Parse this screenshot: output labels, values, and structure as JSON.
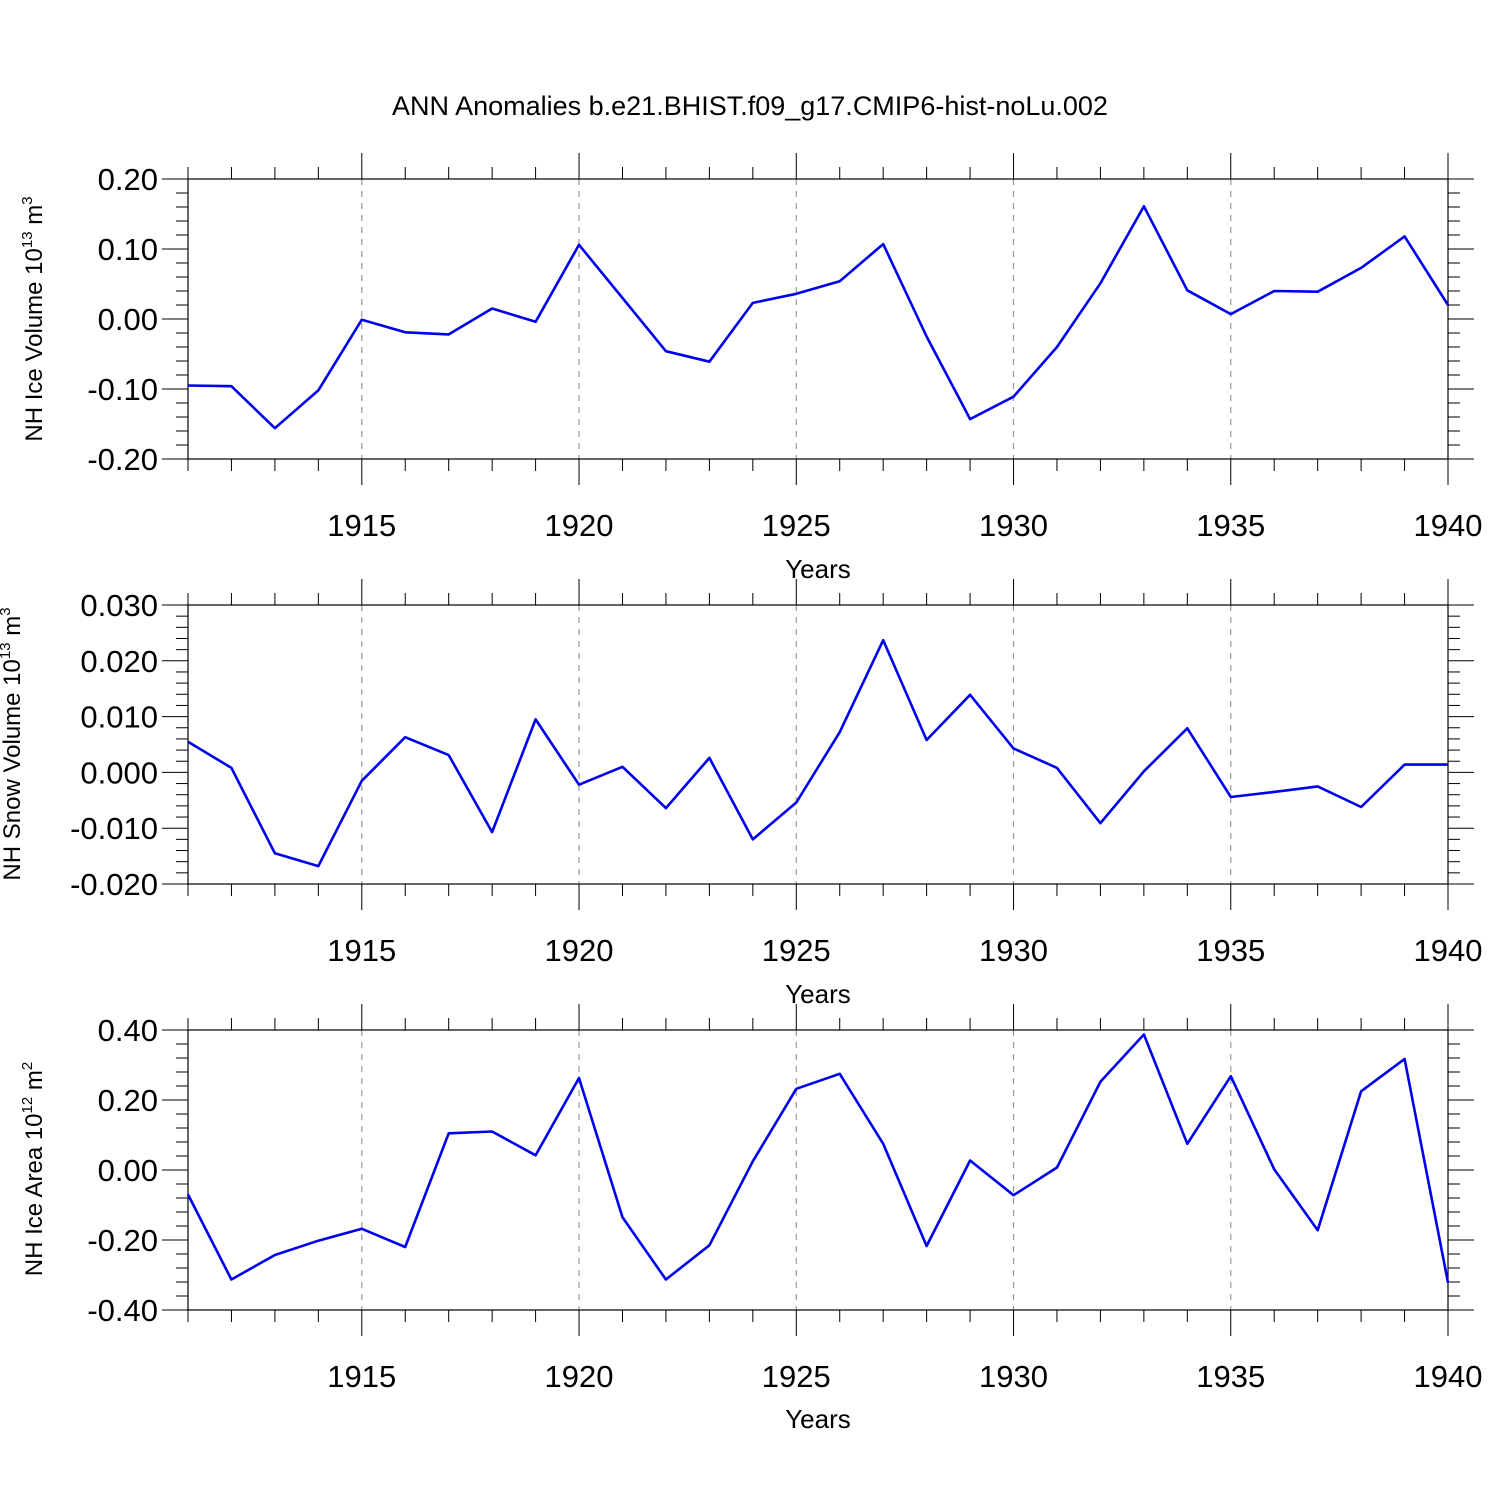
{
  "title": "ANN Anomalies b.e21.BHIST.f09_g17.CMIP6-hist-noLu.002",
  "chart_data": [
    {
      "type": "line",
      "ylabel": {
        "prefix": "NH Ice Volume 10",
        "exp": "13",
        "unit": " m",
        "unit_exp": "3"
      },
      "xlabel": "Years",
      "xlim": [
        1911,
        1940
      ],
      "ylim": [
        -0.2,
        0.2
      ],
      "yticks": [
        -0.2,
        -0.1,
        0.0,
        0.1,
        0.2
      ],
      "ytick_labels": [
        "-0.20",
        "-0.10",
        "0.00",
        "0.10",
        "0.20"
      ],
      "xticks": [
        1915,
        1920,
        1925,
        1930,
        1935,
        1940
      ],
      "xtick_labels": [
        "1915",
        "1920",
        "1925",
        "1930",
        "1935",
        "1940"
      ],
      "line_color": "#0000ee",
      "x": [
        1911,
        1912,
        1913,
        1914,
        1915,
        1916,
        1917,
        1918,
        1919,
        1920,
        1921,
        1922,
        1923,
        1924,
        1925,
        1926,
        1927,
        1928,
        1929,
        1930,
        1931,
        1932,
        1933,
        1934,
        1935,
        1936,
        1937,
        1938,
        1939,
        1940
      ],
      "values": [
        -0.095,
        -0.096,
        -0.156,
        -0.102,
        -0.001,
        -0.019,
        -0.022,
        0.015,
        -0.004,
        0.106,
        0.03,
        -0.046,
        -0.061,
        0.023,
        0.036,
        0.054,
        0.107,
        -0.025,
        -0.143,
        -0.111,
        -0.04,
        0.051,
        0.161,
        0.041,
        0.007,
        0.04,
        0.039,
        0.073,
        0.118,
        0.02
      ]
    },
    {
      "type": "line",
      "ylabel": {
        "prefix": "NH Snow Volume 10",
        "exp": "13",
        "unit": " m",
        "unit_exp": "3"
      },
      "xlabel": "Years",
      "xlim": [
        1911,
        1940
      ],
      "ylim": [
        -0.02,
        0.03
      ],
      "yticks": [
        -0.02,
        -0.01,
        0.0,
        0.01,
        0.02,
        0.03
      ],
      "ytick_labels": [
        "-0.020",
        "-0.010",
        "0.000",
        "0.010",
        "0.020",
        "0.030"
      ],
      "xticks": [
        1915,
        1920,
        1925,
        1930,
        1935,
        1940
      ],
      "xtick_labels": [
        "1915",
        "1920",
        "1925",
        "1930",
        "1935",
        "1940"
      ],
      "line_color": "#0000ee",
      "x": [
        1911,
        1912,
        1913,
        1914,
        1915,
        1916,
        1917,
        1918,
        1919,
        1920,
        1921,
        1922,
        1923,
        1924,
        1925,
        1926,
        1927,
        1928,
        1929,
        1930,
        1931,
        1932,
        1933,
        1934,
        1935,
        1936,
        1937,
        1938,
        1939,
        1940
      ],
      "values": [
        0.0055,
        0.0008,
        -0.0145,
        -0.0168,
        -0.0015,
        0.0063,
        0.0031,
        -0.0107,
        0.0095,
        -0.0022,
        0.001,
        -0.0064,
        0.0026,
        -0.012,
        -0.0054,
        0.0072,
        0.0237,
        0.0058,
        0.0139,
        0.0043,
        0.0008,
        -0.0091,
        0.0002,
        0.0079,
        -0.0044,
        -0.0035,
        -0.0025,
        -0.0062,
        0.0014,
        0.0014
      ]
    },
    {
      "type": "line",
      "ylabel": {
        "prefix": "NH Ice Area 10",
        "exp": "12",
        "unit": " m",
        "unit_exp": "2"
      },
      "xlabel": "Years",
      "xlim": [
        1911,
        1940
      ],
      "ylim": [
        -0.4,
        0.4
      ],
      "yticks": [
        -0.4,
        -0.2,
        0.0,
        0.2,
        0.4
      ],
      "ytick_labels": [
        "-0.40",
        "-0.20",
        "0.00",
        "0.20",
        "0.40"
      ],
      "xticks": [
        1915,
        1920,
        1925,
        1930,
        1935,
        1940
      ],
      "xtick_labels": [
        "1915",
        "1920",
        "1925",
        "1930",
        "1935",
        "1940"
      ],
      "line_color": "#0000ee",
      "x": [
        1911,
        1912,
        1913,
        1914,
        1915,
        1916,
        1917,
        1918,
        1919,
        1920,
        1921,
        1922,
        1923,
        1924,
        1925,
        1926,
        1927,
        1928,
        1929,
        1930,
        1931,
        1932,
        1933,
        1934,
        1935,
        1936,
        1937,
        1938,
        1939,
        1940
      ],
      "values": [
        -0.07,
        -0.313,
        -0.243,
        -0.202,
        -0.168,
        -0.22,
        0.105,
        0.11,
        0.042,
        0.263,
        -0.135,
        -0.313,
        -0.215,
        0.025,
        0.232,
        0.275,
        0.075,
        -0.217,
        0.027,
        -0.072,
        0.007,
        0.252,
        0.387,
        0.075,
        0.268,
        0.002,
        -0.172,
        0.225,
        0.317,
        -0.322
      ]
    }
  ]
}
